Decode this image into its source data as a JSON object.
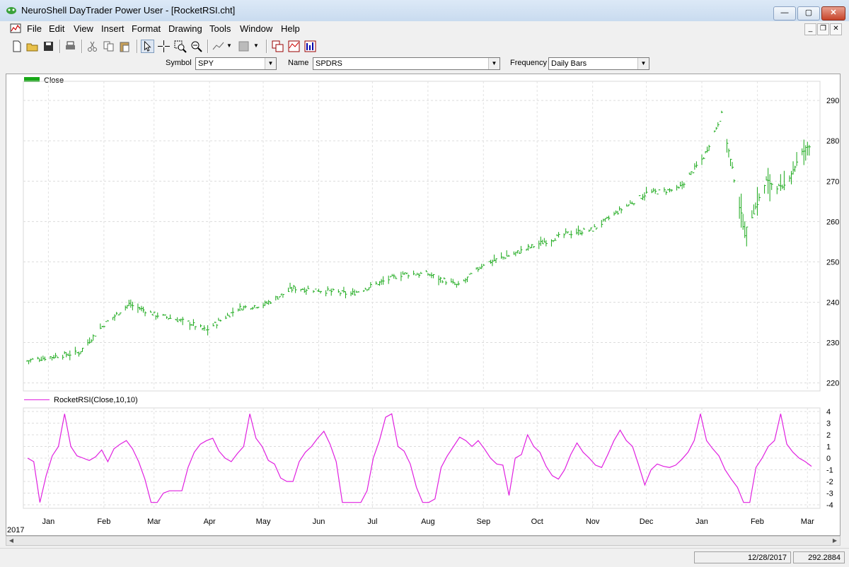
{
  "window": {
    "title": "NeuroShell DayTrader Power User - [RocketRSI.cht]",
    "buttons": {
      "minimize": "—",
      "maximize": "▢",
      "close": "✕"
    }
  },
  "menu": [
    {
      "label": "File",
      "icon": "chart-doc-icon"
    },
    {
      "label": "Edit"
    },
    {
      "label": "View"
    },
    {
      "label": "Insert"
    },
    {
      "label": "Format"
    },
    {
      "label": "Drawing"
    },
    {
      "label": "Tools"
    },
    {
      "label": "Window"
    },
    {
      "label": "Help"
    }
  ],
  "toolbar": [
    "new-file-icon",
    "open-folder-icon",
    "save-disk-icon",
    "print-icon",
    "cut-scissors-icon",
    "copy-icon",
    "paste-icon",
    "pointer-arrow-icon",
    "crosshair-icon",
    "zoom-in-icon",
    "zoom-out-icon",
    "line-drawing-icon",
    "fill-pattern-icon",
    "chart-window-icon",
    "chart-indicator-icon",
    "bar-chart-icon"
  ],
  "symbolbar": {
    "symbol_label": "Symbol",
    "symbol_value": "SPY",
    "name_label": "Name",
    "name_value": "SPDRS",
    "frequency_label": "Frequency",
    "frequency_value": "Daily Bars"
  },
  "chart_data": [
    {
      "type": "line",
      "title": "",
      "series": [
        {
          "name": "Close",
          "color": "#18a818",
          "style": "hlc-bars",
          "x": [
            "2017-01-03",
            "2017-01-17",
            "2017-02-01",
            "2017-02-15",
            "2017-03-01",
            "2017-03-15",
            "2017-04-03",
            "2017-04-13",
            "2017-05-01",
            "2017-05-16",
            "2017-06-01",
            "2017-06-15",
            "2017-07-03",
            "2017-07-17",
            "2017-08-01",
            "2017-08-15",
            "2017-09-01",
            "2017-09-15",
            "2017-10-02",
            "2017-10-16",
            "2017-11-01",
            "2017-11-15",
            "2017-12-01",
            "2017-12-15",
            "2018-01-02",
            "2018-01-16",
            "2018-01-26",
            "2018-02-08",
            "2018-02-20",
            "2018-03-01",
            "2018-03-12",
            "2018-03-16"
          ],
          "values": [
            225.5,
            226.5,
            227.5,
            234.5,
            239.5,
            237,
            235,
            233,
            238.5,
            239.5,
            243.5,
            243,
            242,
            244.5,
            247,
            247,
            244,
            249.5,
            252,
            254.5,
            257,
            258,
            263,
            267,
            268,
            276,
            286.5,
            257,
            270,
            268,
            277,
            279
          ]
        }
      ],
      "xtick_labels": [
        "Jan",
        "Feb",
        "Mar",
        "Apr",
        "May",
        "Jun",
        "Jul",
        "Aug",
        "Sep",
        "Oct",
        "Nov",
        "Dec",
        "Jan",
        "Feb",
        "Mar"
      ],
      "ytick_labels": [
        "220",
        "230",
        "240",
        "250",
        "260",
        "270",
        "280",
        "290"
      ],
      "ylim": [
        218,
        293
      ],
      "grid": true
    },
    {
      "type": "line",
      "series": [
        {
          "name": "RocketRSI(Close,10,10)",
          "color": "#e020e0",
          "values": [
            0,
            -0.3,
            -3.8,
            -1.5,
            0.2,
            1,
            3.8,
            1,
            0.2,
            0,
            -0.2,
            0.1,
            0.7,
            -0.3,
            0.8,
            1.2,
            1.5,
            0.8,
            -0.3,
            -1.8,
            -3.8,
            -3.8,
            -3,
            -2.8,
            -2.8,
            -2.8,
            -0.8,
            0.5,
            1.2,
            1.5,
            1.7,
            0.6,
            0,
            -0.3,
            0.4,
            1,
            3.8,
            1.7,
            1,
            -0.2,
            -0.5,
            -1.7,
            -2,
            -2,
            -0.3,
            0.5,
            1,
            1.7,
            2.3,
            1.2,
            -0.3,
            -3.8,
            -3.8,
            -3.8,
            -3.8,
            -2.8,
            0,
            1.5,
            3.5,
            3.8,
            1,
            0.6,
            -0.5,
            -2.5,
            -3.8,
            -3.8,
            -3.5,
            -0.8,
            0.2,
            1,
            1.8,
            1.5,
            1,
            1.5,
            0.8,
            0,
            -0.5,
            -0.6,
            -3.2,
            0,
            0.3,
            2,
            1,
            0.5,
            -0.7,
            -1.5,
            -1.8,
            -1,
            0.3,
            1.3,
            0.5,
            0,
            -0.6,
            -0.8,
            0.3,
            1.5,
            2.4,
            1.5,
            1,
            -0.6,
            -2.3,
            -1,
            -0.5,
            -0.7,
            -0.8,
            -0.6,
            -0.1,
            0.5,
            1.5,
            3.8,
            1.5,
            0.8,
            0.2,
            -1,
            -1.8,
            -2.5,
            -3.8,
            -3.8,
            -0.8,
            0,
            1,
            1.5,
            3.8,
            1.2,
            0.5,
            0,
            -0.3,
            -0.7
          ]
        }
      ],
      "xtick_labels": [
        "Jan",
        "Feb",
        "Mar",
        "Apr",
        "May",
        "Jun",
        "Jul",
        "Aug",
        "Sep",
        "Oct",
        "Nov",
        "Dec",
        "Jan",
        "Feb",
        "Mar"
      ],
      "ytick_labels": [
        "4",
        "3",
        "2",
        "1",
        "0",
        "-1",
        "-2",
        "-3",
        "-4"
      ],
      "ylim": [
        -4.3,
        4.3
      ],
      "grid": true
    }
  ],
  "year_label": "2017",
  "status": {
    "date": "12/28/2017",
    "value": "292.2884"
  }
}
